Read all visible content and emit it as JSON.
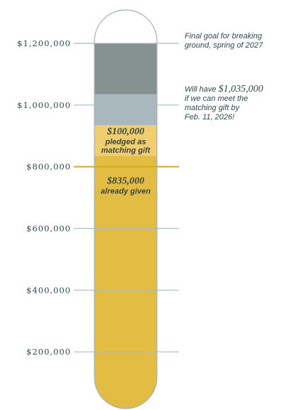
{
  "chart_data": {
    "type": "bar",
    "title": "",
    "xlabel": "",
    "ylabel": "",
    "ylim": [
      0,
      1200000
    ],
    "y_ticks": [
      200000,
      400000,
      600000,
      800000,
      1000000,
      1200000
    ],
    "y_tick_labels": [
      "$200,000",
      "$400,000",
      "$600,000",
      "$800,000",
      "$1,000,000",
      "$1,200,000"
    ],
    "highlighted_tick": 800000,
    "segments": [
      {
        "key": "given",
        "from": 0,
        "to": 835000,
        "color": "#e3bc43",
        "amount_label": "$835,000",
        "caption_lines": [
          "already given"
        ]
      },
      {
        "key": "matching",
        "from": 835000,
        "to": 935000,
        "color": "#f0cd6d",
        "amount_label": "$100,000",
        "caption_lines": [
          "pledged as",
          "matching gift"
        ]
      },
      {
        "key": "if_matched",
        "from": 935000,
        "to": 1035000,
        "color": "#a8b8bd"
      },
      {
        "key": "final_goal",
        "from": 1035000,
        "to": 1200000,
        "color": "#86928f"
      }
    ],
    "annotations": [
      {
        "key": "goal",
        "value": 1200000,
        "lines": [
          "Final goal for breaking",
          "ground, spring of 2027"
        ]
      },
      {
        "key": "match",
        "value": 1000000,
        "lines": [
          {
            "small": "Will have ",
            "big": "$1,035,000"
          },
          {
            "small": "if we can meet the"
          },
          {
            "small": "matching gift by"
          },
          {
            "small": "Feb. 11, 2026!"
          }
        ]
      }
    ]
  }
}
